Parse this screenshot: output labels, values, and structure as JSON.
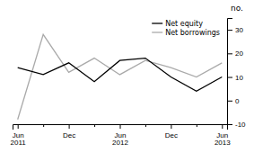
{
  "chart_data": {
    "type": "line",
    "categories": [
      "Jun\n2011",
      null,
      "Dec",
      null,
      "Jun\n2012",
      null,
      "Dec",
      null,
      "Jun\n2013"
    ],
    "series": [
      {
        "name": "Net equity",
        "color": "#000000",
        "values": [
          14,
          11,
          16,
          8,
          17,
          18,
          10,
          4,
          10
        ]
      },
      {
        "name": "Net borrowings",
        "color": "#aaaaaa",
        "values": [
          -8,
          28,
          12,
          18,
          11,
          17,
          14,
          10,
          16
        ]
      }
    ],
    "ylim": [
      -10,
      35
    ],
    "yticks": [
      -10,
      0,
      10,
      20,
      30
    ],
    "ylabel": "no.",
    "legend": "upper right",
    "grid": false
  }
}
